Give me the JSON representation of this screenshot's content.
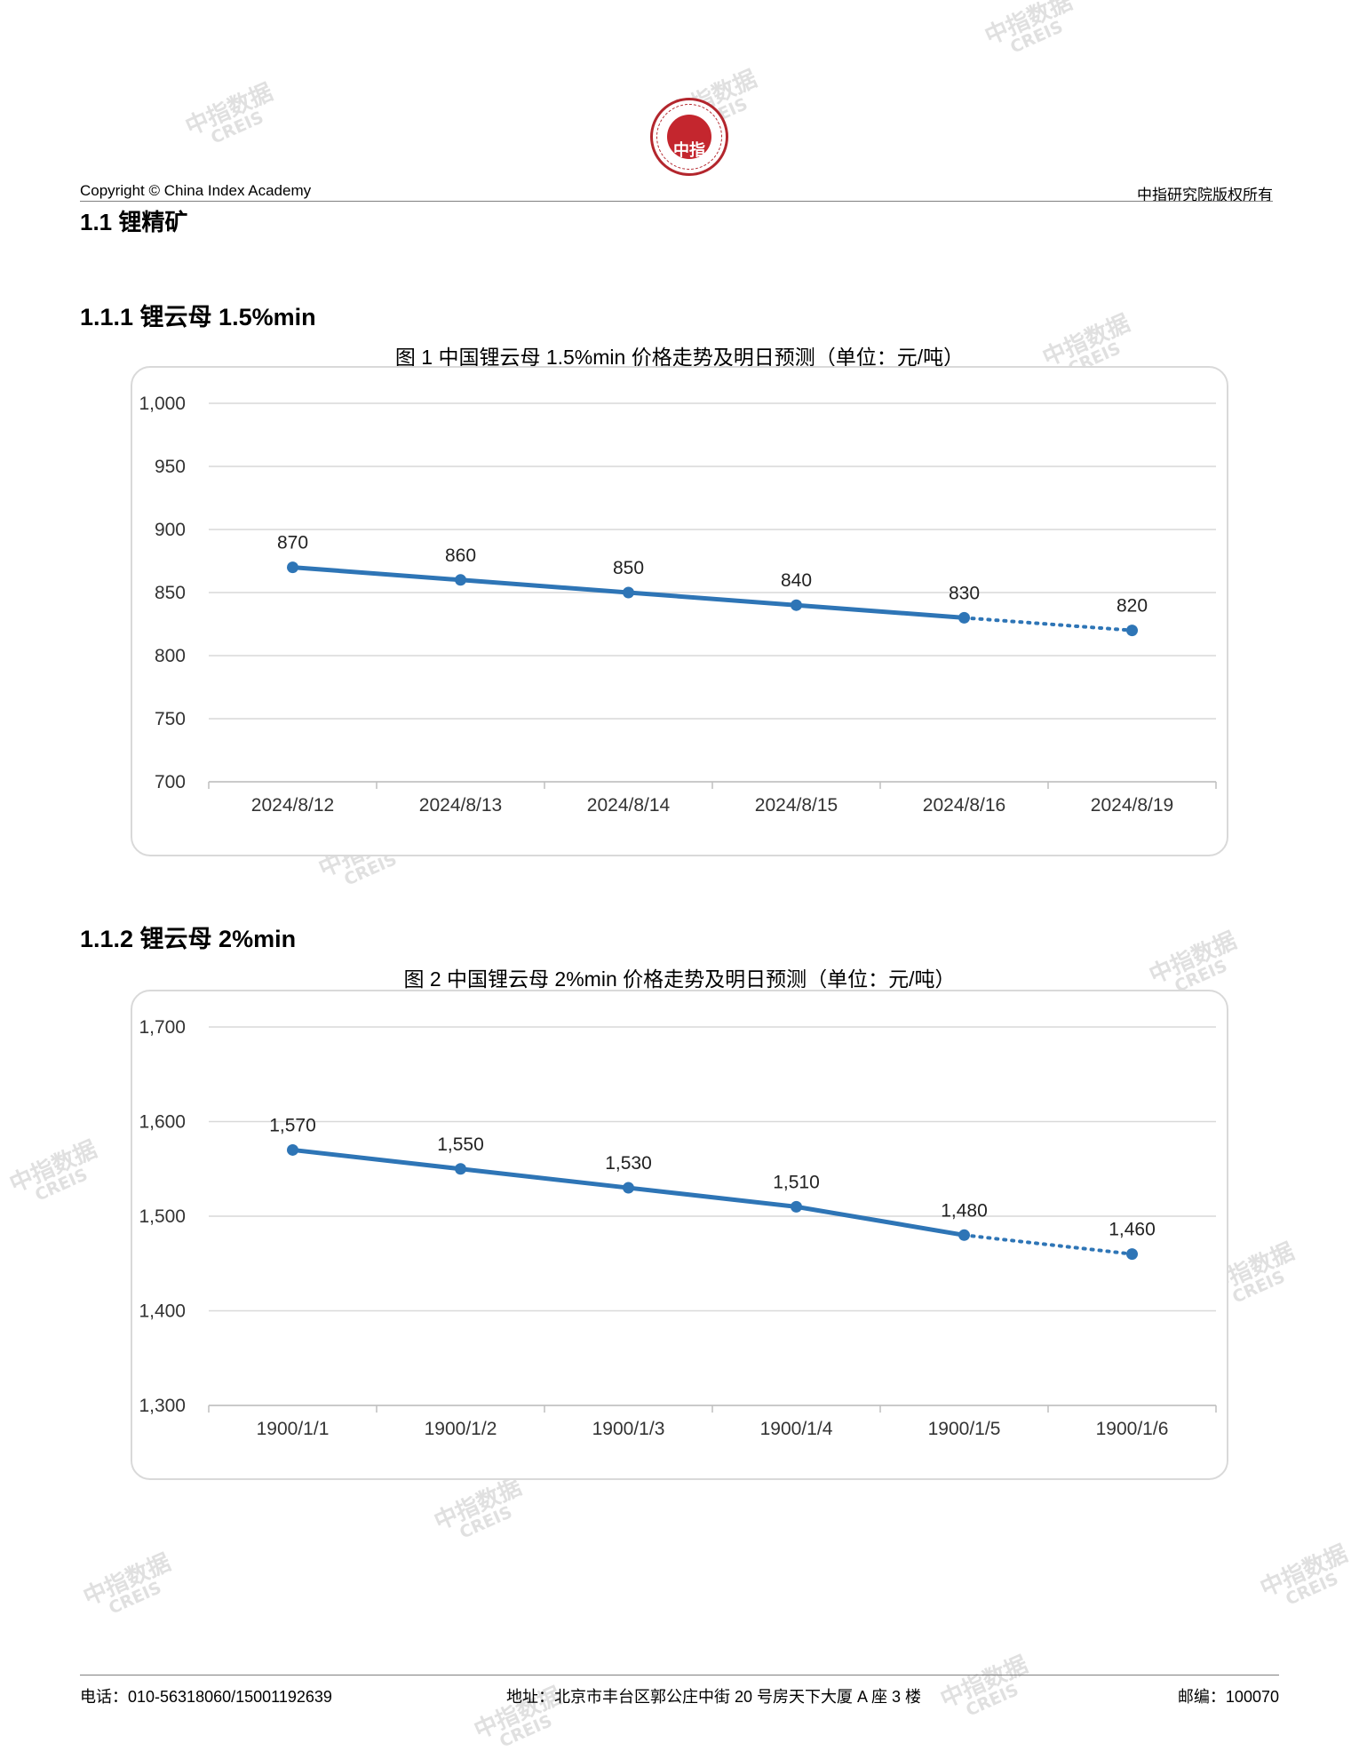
{
  "header": {
    "copyright": "Copyright © China Index Academy",
    "rights": "中指研究院版权所有",
    "logo_text": "中指",
    "logo_ring_text": "CHINA INDEX ACADEMY"
  },
  "watermark": {
    "cn": "中指数据",
    "en": "CREIS"
  },
  "sections": {
    "main": "1.1 锂精矿",
    "sub1": "1.1.1 锂云母 1.5%min",
    "sub2": "1.1.2 锂云母 2%min"
  },
  "figures": [
    {
      "title": "图 1 中国锂云母 1.5%min 价格走势及明日预测（单位：元/吨）"
    },
    {
      "title": "图 2 中国锂云母 2%min 价格走势及明日预测（单位：元/吨）"
    }
  ],
  "chart_data": [
    {
      "type": "line",
      "title": "图 1 中国锂云母 1.5%min 价格走势及明日预测（单位：元/吨）",
      "categories": [
        "2024/8/12",
        "2024/8/13",
        "2024/8/14",
        "2024/8/15",
        "2024/8/16",
        "2024/8/19"
      ],
      "values": [
        870,
        860,
        850,
        840,
        830,
        820
      ],
      "value_labels": [
        "870",
        "860",
        "850",
        "840",
        "830",
        "820"
      ],
      "forecast_from_index": 4,
      "ylim": [
        700,
        1000
      ],
      "yticks": [
        700,
        750,
        800,
        850,
        900,
        950,
        1000
      ],
      "ytick_labels": [
        "700",
        "750",
        "800",
        "850",
        "900",
        "950",
        "1,000"
      ],
      "grid": true,
      "color": "#2e75b6"
    },
    {
      "type": "line",
      "title": "图 2 中国锂云母 2%min 价格走势及明日预测（单位：元/吨）",
      "categories": [
        "1900/1/1",
        "1900/1/2",
        "1900/1/3",
        "1900/1/4",
        "1900/1/5",
        "1900/1/6"
      ],
      "values": [
        1570,
        1550,
        1530,
        1510,
        1480,
        1460
      ],
      "value_labels": [
        "1,570",
        "1,550",
        "1,530",
        "1,510",
        "1,480",
        "1,460"
      ],
      "forecast_from_index": 4,
      "ylim": [
        1300,
        1700
      ],
      "yticks": [
        1300,
        1400,
        1500,
        1600,
        1700
      ],
      "ytick_labels": [
        "1,300",
        "1,400",
        "1,500",
        "1,600",
        "1,700"
      ],
      "grid": true,
      "color": "#2e75b6"
    }
  ],
  "footer": {
    "tel": "电话：010-56318060/15001192639",
    "address": "地址：北京市丰台区郭公庄中街 20 号房天下大厦 A 座 3 楼",
    "postcode": "邮编：100070"
  }
}
